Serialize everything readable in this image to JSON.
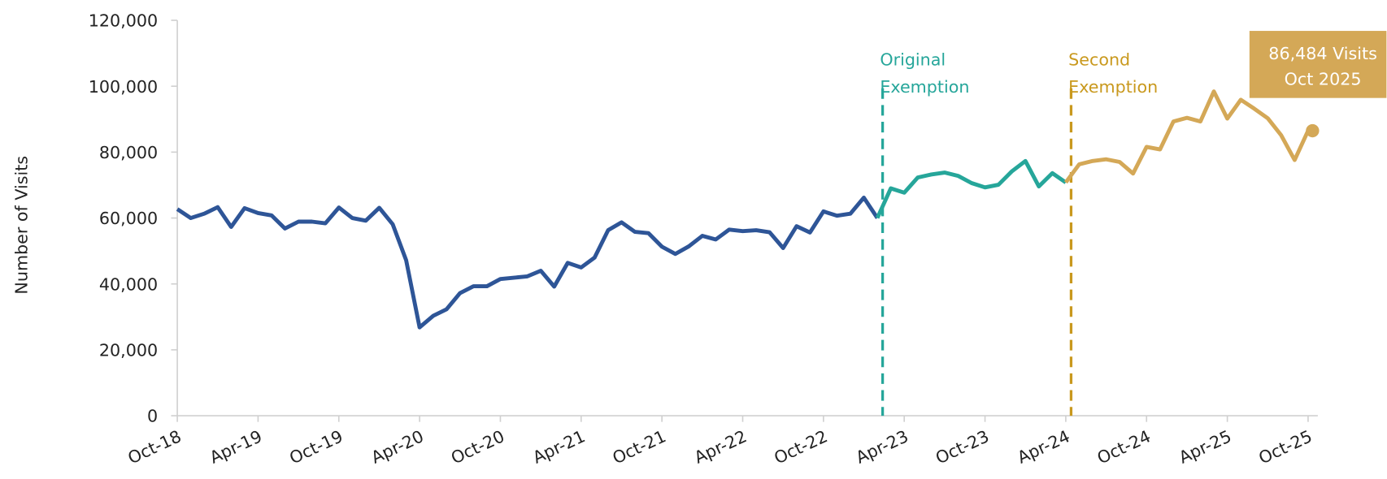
{
  "chart_data": {
    "type": "line",
    "y_label": "Number of Visits",
    "categories": [
      "Oct-18",
      null,
      null,
      null,
      null,
      null,
      "Apr-19",
      null,
      null,
      null,
      null,
      null,
      "Oct-19",
      null,
      null,
      null,
      null,
      null,
      "Apr-20",
      null,
      null,
      null,
      null,
      null,
      "Oct-20",
      null,
      null,
      null,
      null,
      null,
      "Apr-21",
      null,
      null,
      null,
      null,
      null,
      "Oct-21",
      null,
      null,
      null,
      null,
      null,
      "Apr-22",
      null,
      null,
      null,
      null,
      null,
      "Oct-22",
      null,
      null,
      null,
      null,
      null,
      "Apr-23",
      null,
      null,
      null,
      null,
      null,
      "Oct-23",
      null,
      null,
      null,
      null,
      null,
      "Apr-24",
      null,
      null,
      null,
      null,
      null,
      "Oct-24",
      null,
      null,
      null,
      null,
      null,
      "Apr-25",
      null,
      null,
      null,
      null,
      null,
      "Oct-25"
    ],
    "series": [
      {
        "color": "#2e5597",
        "values": [
          62700,
          60000,
          61300,
          63300,
          57300,
          63000,
          61500,
          60800,
          56800,
          58900,
          58900,
          58400,
          63200,
          60000,
          59200,
          63100,
          58100,
          47200,
          26800,
          30300,
          32300,
          37200,
          39300,
          39300,
          41500,
          41900,
          42300,
          44000,
          39200,
          46400,
          45000,
          48000,
          56300,
          58700,
          55800,
          55400,
          51300,
          49100,
          51400,
          54600,
          53500,
          56500,
          56000,
          56300,
          55700,
          50900,
          57500,
          55600,
          62000,
          60700,
          61300,
          66200,
          60000,
          null,
          null,
          null,
          null,
          null,
          null,
          null,
          null,
          null,
          null,
          null,
          null,
          null,
          null,
          null,
          null,
          null,
          null,
          null,
          null,
          null,
          null,
          null,
          null,
          null,
          null,
          null,
          null,
          null,
          null,
          null,
          null
        ]
      },
      {
        "color": "#26a69a",
        "values": [
          null,
          null,
          null,
          null,
          null,
          null,
          null,
          null,
          null,
          null,
          null,
          null,
          null,
          null,
          null,
          null,
          null,
          null,
          null,
          null,
          null,
          null,
          null,
          null,
          null,
          null,
          null,
          null,
          null,
          null,
          null,
          null,
          null,
          null,
          null,
          null,
          null,
          null,
          null,
          null,
          null,
          null,
          null,
          null,
          null,
          null,
          null,
          null,
          null,
          null,
          null,
          null,
          60000,
          69000,
          67700,
          72300,
          73200,
          73800,
          72800,
          70600,
          69300,
          70100,
          74200,
          77300,
          69600,
          73600,
          70800,
          null,
          null,
          null,
          null,
          null,
          null,
          null,
          null,
          null,
          null,
          null,
          null,
          null,
          null,
          null,
          null,
          null,
          null
        ]
      },
      {
        "color": "#d4a857",
        "values": [
          null,
          null,
          null,
          null,
          null,
          null,
          null,
          null,
          null,
          null,
          null,
          null,
          null,
          null,
          null,
          null,
          null,
          null,
          null,
          null,
          null,
          null,
          null,
          null,
          null,
          null,
          null,
          null,
          null,
          null,
          null,
          null,
          null,
          null,
          null,
          null,
          null,
          null,
          null,
          null,
          null,
          null,
          null,
          null,
          null,
          null,
          null,
          null,
          null,
          null,
          null,
          null,
          null,
          null,
          null,
          null,
          null,
          null,
          null,
          null,
          null,
          null,
          null,
          null,
          null,
          null,
          70800,
          76300,
          77300,
          77800,
          77000,
          73500,
          81600,
          80800,
          89300,
          90400,
          89300,
          98400,
          90200,
          95900,
          93200,
          90300,
          85100,
          77600,
          86484
        ]
      }
    ],
    "annotations": [
      {
        "lines": [
          "Original",
          "Exemption"
        ],
        "color": "#26a69a"
      },
      {
        "lines": [
          "Second",
          "Exemption"
        ],
        "color": "#c9991e"
      }
    ],
    "callout": {
      "lines": [
        "86,484 Visits",
        "Oct 2025"
      ],
      "color": "#d4a857"
    },
    "ylim": [
      0,
      120000
    ],
    "yticks": [
      0,
      {
        "value": 20000,
        "label": "20,000"
      },
      {
        "value": 40000,
        "label": "40,000"
      },
      {
        "value": 60000,
        "label": "60,000"
      },
      {
        "value": 80000,
        "label": "80,000"
      },
      {
        "value": 100000,
        "label": "100,000"
      },
      {
        "value": 120000,
        "label": "120,000"
      }
    ],
    "grid": false
  }
}
